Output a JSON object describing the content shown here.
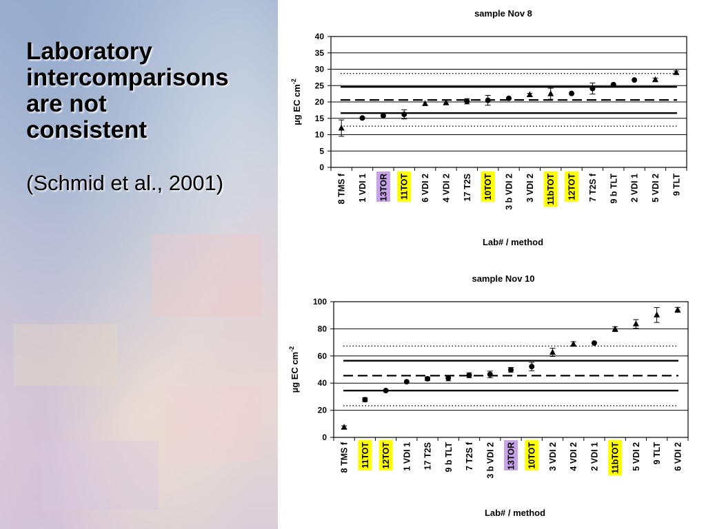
{
  "slide": {
    "title_lines": [
      "Laboratory",
      "intercomparisons",
      "are not",
      "consistent"
    ],
    "citation": "(Schmid et al., 2001)"
  },
  "colors": {
    "highlight_yellow": "#ffff00",
    "highlight_purple": "#c8a2e8"
  },
  "chart_data": [
    {
      "type": "scatter",
      "title": "sample Nov 8",
      "xlabel": "Lab# / method",
      "ylabel": "µg EC cm",
      "ylabel_superscript": "-2",
      "ylim": [
        0,
        40
      ],
      "yticks": [
        0,
        5,
        10,
        15,
        20,
        25,
        30,
        35,
        40
      ],
      "grid": "horizontal",
      "categories": [
        "8 TMS f",
        "1 VDI 1",
        "13TOR",
        "11TOT",
        "6 VDI 2",
        "4 VDI 2",
        "17 T2S",
        "10TOT",
        "3 b VDI 2",
        "3 VDI 2",
        "11bTOT",
        "12TOT",
        "7 T2S f",
        "9 b TLT",
        "2 VDI 1",
        "5 VDI 2",
        "9 TLT"
      ],
      "highlight": [
        "",
        "",
        "purple",
        "yellow",
        "",
        "",
        "",
        "yellow",
        "",
        "",
        "yellow",
        "yellow",
        "",
        "",
        "",
        "",
        ""
      ],
      "values": [
        12,
        15.1,
        15.8,
        16.2,
        19.5,
        19.8,
        20.2,
        20.5,
        21.1,
        22.2,
        22.5,
        22.6,
        24.1,
        25.3,
        26.7,
        26.8,
        29
      ],
      "error": [
        2.5,
        0,
        0,
        1.4,
        0,
        0.7,
        0.8,
        1.5,
        0,
        0.4,
        1.7,
        0,
        1.7,
        0,
        0,
        0.5,
        0.5
      ],
      "marker": [
        "triangle",
        "circle",
        "circle",
        "circle",
        "triangle",
        "triangle",
        "circle",
        "circle",
        "circle",
        "triangle",
        "triangle",
        "circle",
        "circle",
        "circle",
        "circle",
        "triangle",
        "triangle"
      ],
      "reference_lines": [
        {
          "style": "dotted",
          "value": 28.7
        },
        {
          "style": "solid-thick",
          "value": 24.6
        },
        {
          "style": "dashed",
          "value": 20.6
        },
        {
          "style": "solid-thick",
          "value": 16.6
        },
        {
          "style": "dotted",
          "value": 12.6
        }
      ]
    },
    {
      "type": "scatter",
      "title": "sample Nov 10",
      "xlabel": "Lab# / method",
      "ylabel": "µg EC cm",
      "ylabel_superscript": "-2",
      "ylim": [
        0,
        100
      ],
      "yticks": [
        0,
        20,
        40,
        60,
        80,
        100
      ],
      "grid": "horizontal",
      "categories": [
        "8 TMS f",
        "11TOT",
        "12TOT",
        "1 VDI 1",
        "17 T2S",
        "9 b TLT",
        "7 T2S f",
        "3 b VDI 2",
        "13TOR",
        "10TOT",
        "3 VDI 2",
        "4 VDI 2",
        "2 VDI 1",
        "11bTOT",
        "5 VDI 2",
        "9 TLT",
        "6 VDI 2"
      ],
      "highlight": [
        "",
        "yellow",
        "yellow",
        "",
        "",
        "",
        "",
        "",
        "purple",
        "yellow",
        "",
        "",
        "",
        "yellow",
        "",
        "",
        ""
      ],
      "values": [
        7.5,
        27.8,
        34.5,
        41,
        43.2,
        43.7,
        45.8,
        46.4,
        49.8,
        52.2,
        62.7,
        68.8,
        69.5,
        79.8,
        83.6,
        90.2,
        94
      ],
      "error": [
        1,
        1.5,
        0,
        0,
        1.3,
        2,
        1.8,
        2.4,
        1.7,
        3.1,
        3,
        1.7,
        0,
        1.8,
        3.2,
        5.5,
        1.8
      ],
      "marker": [
        "triangle",
        "circle",
        "circle",
        "circle",
        "circle",
        "circle",
        "circle",
        "circle",
        "circle",
        "circle",
        "triangle",
        "triangle",
        "circle",
        "triangle",
        "triangle",
        "triangle",
        "triangle"
      ],
      "reference_lines": [
        {
          "style": "dotted",
          "value": 67.3
        },
        {
          "style": "solid-thick",
          "value": 56.5
        },
        {
          "style": "dashed",
          "value": 45.5
        },
        {
          "style": "solid-thick",
          "value": 34.5
        },
        {
          "style": "dotted",
          "value": 23.3
        }
      ]
    }
  ]
}
